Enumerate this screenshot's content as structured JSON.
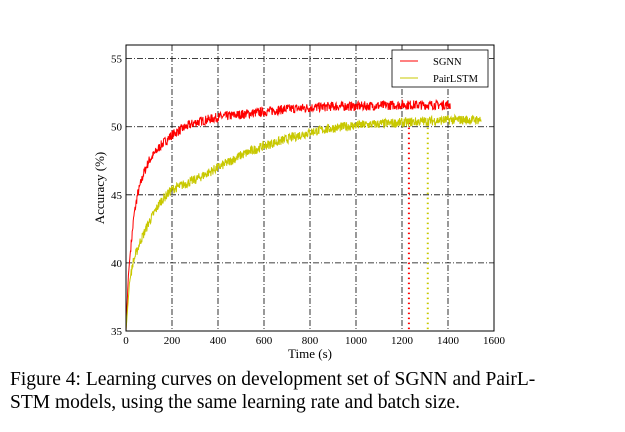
{
  "chart_data": {
    "type": "line",
    "xlabel": "Time (s)",
    "ylabel": "Accuracy (%)",
    "xlim": [
      0,
      1600
    ],
    "ylim": [
      35,
      56
    ],
    "xticks": [
      0,
      200,
      400,
      600,
      800,
      1000,
      1200,
      1400,
      1600
    ],
    "yticks": [
      35,
      40,
      45,
      50,
      55
    ],
    "grid": true,
    "legend_position": "top-right",
    "series": [
      {
        "name": "SGNN",
        "color": "#ff0000",
        "x": [
          0,
          10,
          20,
          35,
          50,
          75,
          100,
          150,
          200,
          250,
          300,
          400,
          500,
          600,
          700,
          800,
          900,
          1000,
          1100,
          1200,
          1300,
          1410
        ],
        "y": [
          35,
          39,
          41,
          43.5,
          45,
          46.5,
          47.5,
          48.6,
          49.4,
          49.9,
          50.3,
          50.7,
          50.9,
          51.1,
          51.3,
          51.4,
          51.5,
          51.5,
          51.55,
          51.6,
          51.6,
          51.6
        ]
      },
      {
        "name": "PairLSTM",
        "color": "#c8c800",
        "x": [
          0,
          15,
          30,
          60,
          100,
          150,
          200,
          300,
          400,
          500,
          600,
          700,
          800,
          900,
          1000,
          1100,
          1200,
          1300,
          1400,
          1545
        ],
        "y": [
          35,
          38.5,
          40,
          41.5,
          43,
          44.5,
          45.4,
          46.1,
          47,
          47.9,
          48.6,
          49.1,
          49.6,
          49.9,
          50.1,
          50.2,
          50.3,
          50.4,
          50.5,
          50.5
        ]
      }
    ],
    "vertical_markers": [
      {
        "x": 1230,
        "color": "#ff0000",
        "style": "dotted"
      },
      {
        "x": 1312,
        "color": "#c8c800",
        "style": "dotted"
      }
    ]
  },
  "caption": {
    "line1": "Figure 4: Learning curves on development set of SGNN and PairL-",
    "line2": "STM models, using the same learning rate and batch size."
  }
}
